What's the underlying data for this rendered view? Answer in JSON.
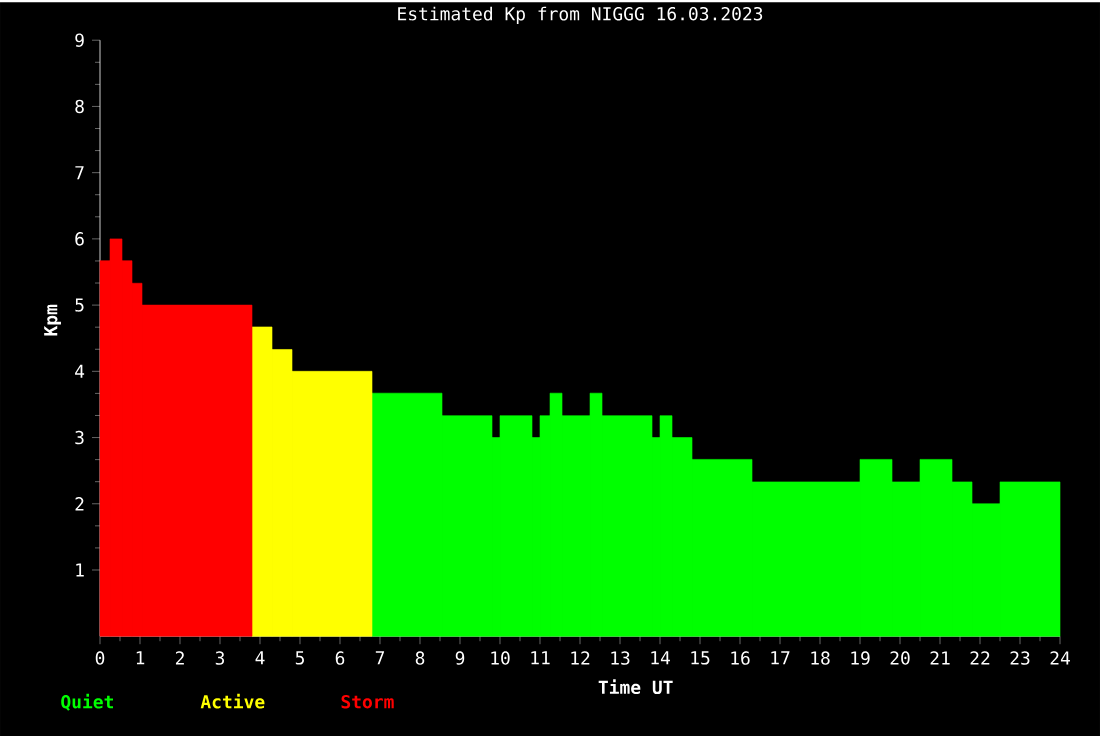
{
  "chart_data": {
    "type": "histogram",
    "title": "Estimated Kp from NIGGG 16.03.2023",
    "xlabel": "Time UT",
    "ylabel": "Kpm",
    "bins": [
      0,
      0.25,
      0.55,
      0.8,
      1.05,
      3.8,
      4.3,
      4.8,
      6.8,
      8.55,
      9.8,
      10,
      10.8,
      11,
      11.25,
      11.55,
      12.25,
      12.55,
      13.8,
      14,
      14.3,
      14.8,
      16.3,
      19,
      19.8,
      20.5,
      21.3,
      21.8,
      22.5,
      24
    ],
    "series": [
      {
        "name": "Quiet",
        "color": "#00ff00",
        "values": [
          null,
          null,
          null,
          null,
          null,
          null,
          null,
          null,
          3.67,
          3.33,
          3,
          3.33,
          3,
          3.33,
          3.67,
          3.33,
          3.67,
          3.33,
          3,
          3.33,
          3,
          2.67,
          2.33,
          2.67,
          2.33,
          2.67,
          2.33,
          2,
          2.33
        ]
      },
      {
        "name": "Active",
        "color": "#ffff00",
        "values": [
          null,
          null,
          null,
          null,
          null,
          4.67,
          4.33,
          4,
          null,
          null,
          null,
          null,
          null,
          null,
          null,
          null,
          null,
          null,
          null,
          null,
          null,
          null,
          null,
          null,
          null,
          null,
          null,
          null,
          null
        ]
      },
      {
        "name": "Storm",
        "color": "#ff0000",
        "values": [
          5.67,
          6,
          5.67,
          5.33,
          5,
          null,
          null,
          null,
          null,
          null,
          null,
          null,
          null,
          null,
          null,
          null,
          null,
          null,
          null,
          null,
          null,
          null,
          null,
          null,
          null,
          null,
          null,
          null,
          null
        ]
      }
    ],
    "xlim": [
      0,
      24
    ],
    "xticks": [
      0,
      1,
      2,
      3,
      4,
      5,
      6,
      7,
      8,
      9,
      10,
      11,
      12,
      13,
      14,
      15,
      16,
      17,
      18,
      19,
      20,
      21,
      22,
      23,
      24
    ],
    "ylim": [
      0,
      9
    ],
    "yticks": [
      1,
      2,
      3,
      4,
      5,
      6,
      7,
      8,
      9
    ],
    "legend": "bottom left"
  }
}
